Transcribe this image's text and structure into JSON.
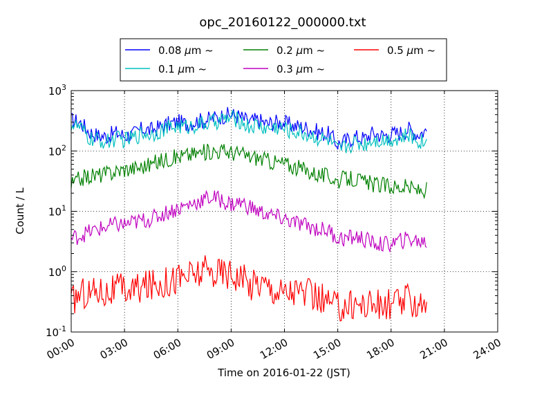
{
  "chart_data": {
    "type": "line",
    "title": "opc_20160122_000000.txt",
    "xlabel": "Time on 2016-01-22 (JST)",
    "ylabel": "Count / L",
    "xlim": [
      "00:00",
      "24:00"
    ],
    "ylim": [
      0.1,
      1000
    ],
    "yscale": "log",
    "grid": true,
    "legend_position": "top-center-outside",
    "x_ticks": [
      "00:00",
      "03:00",
      "06:00",
      "09:00",
      "12:00",
      "15:00",
      "18:00",
      "21:00",
      "24:00"
    ],
    "y_ticks": [
      {
        "base": "10",
        "exp": "-1",
        "value": 0.1
      },
      {
        "base": "10",
        "exp": "0",
        "value": 1
      },
      {
        "base": "10",
        "exp": "1",
        "value": 10
      },
      {
        "base": "10",
        "exp": "2",
        "value": 100
      },
      {
        "base": "10",
        "exp": "3",
        "value": 1000
      }
    ],
    "x": [
      "00:00",
      "00:30",
      "01:00",
      "01:30",
      "02:00",
      "02:30",
      "03:00",
      "03:30",
      "04:00",
      "04:30",
      "05:00",
      "05:30",
      "06:00",
      "06:30",
      "07:00",
      "07:30",
      "08:00",
      "08:30",
      "09:00",
      "09:30",
      "10:00",
      "10:30",
      "11:00",
      "11:30",
      "12:00",
      "12:30",
      "13:00",
      "13:30",
      "14:00",
      "14:30",
      "15:00",
      "15:30",
      "16:00",
      "16:30",
      "17:00",
      "17:30",
      "18:00",
      "18:30",
      "19:00",
      "19:30",
      "20:00"
    ],
    "series": [
      {
        "name": "0.08 μm ~",
        "label_prefix": "0.08 ",
        "label_suffix": "m ~",
        "color": "#0000ff",
        "values": [
          320,
          300,
          210,
          180,
          175,
          200,
          180,
          190,
          230,
          220,
          250,
          280,
          300,
          280,
          310,
          320,
          350,
          380,
          400,
          370,
          300,
          330,
          280,
          300,
          290,
          260,
          250,
          230,
          200,
          190,
          130,
          150,
          170,
          160,
          200,
          180,
          190,
          200,
          230,
          190,
          220
        ]
      },
      {
        "name": "0.1 μm ~",
        "label_prefix": "0.1 ",
        "label_suffix": "m ~",
        "color": "#00bfbf",
        "values": [
          280,
          240,
          160,
          150,
          140,
          160,
          150,
          165,
          200,
          190,
          220,
          240,
          260,
          250,
          270,
          280,
          300,
          330,
          350,
          320,
          250,
          270,
          230,
          250,
          230,
          210,
          200,
          180,
          160,
          150,
          100,
          120,
          140,
          130,
          160,
          150,
          160,
          160,
          180,
          150,
          140
        ]
      },
      {
        "name": "0.2 μm ~",
        "label_prefix": "0.2 ",
        "label_suffix": "m ~",
        "color": "#008000",
        "values": [
          27,
          35,
          38,
          40,
          42,
          46,
          50,
          52,
          55,
          60,
          68,
          75,
          80,
          85,
          90,
          95,
          100,
          100,
          95,
          90,
          80,
          78,
          70,
          65,
          62,
          55,
          50,
          45,
          40,
          38,
          32,
          35,
          34,
          30,
          28,
          27,
          26,
          25,
          25,
          22,
          23
        ]
      },
      {
        "name": "0.3 μm ~",
        "label_prefix": "0.3 ",
        "label_suffix": "m ~",
        "color": "#bf00bf",
        "values": [
          3.5,
          4,
          4.5,
          5,
          5.5,
          6,
          6,
          6.5,
          7,
          7.5,
          8.5,
          10,
          11,
          12.5,
          14,
          16,
          17,
          15,
          13,
          14,
          12,
          10,
          9,
          8,
          7.5,
          6.5,
          6,
          5.5,
          5,
          4.8,
          3.6,
          3.5,
          3.8,
          3.4,
          3,
          2.8,
          2.9,
          3.2,
          3.5,
          3.2,
          3.1
        ]
      },
      {
        "name": "0.5 μm ~",
        "label_prefix": "0.5 ",
        "label_suffix": "m ~",
        "color": "#ff0000",
        "values": [
          0.3,
          0.45,
          0.45,
          0.5,
          0.45,
          0.5,
          0.5,
          0.5,
          0.55,
          0.6,
          0.65,
          0.7,
          0.8,
          0.85,
          0.9,
          1.0,
          0.95,
          1.0,
          0.95,
          0.85,
          0.6,
          0.7,
          0.6,
          0.5,
          0.45,
          0.5,
          0.45,
          0.4,
          0.35,
          0.3,
          0.25,
          0.28,
          0.3,
          0.28,
          0.3,
          0.25,
          0.3,
          0.3,
          0.35,
          0.3,
          0.35
        ]
      }
    ]
  }
}
